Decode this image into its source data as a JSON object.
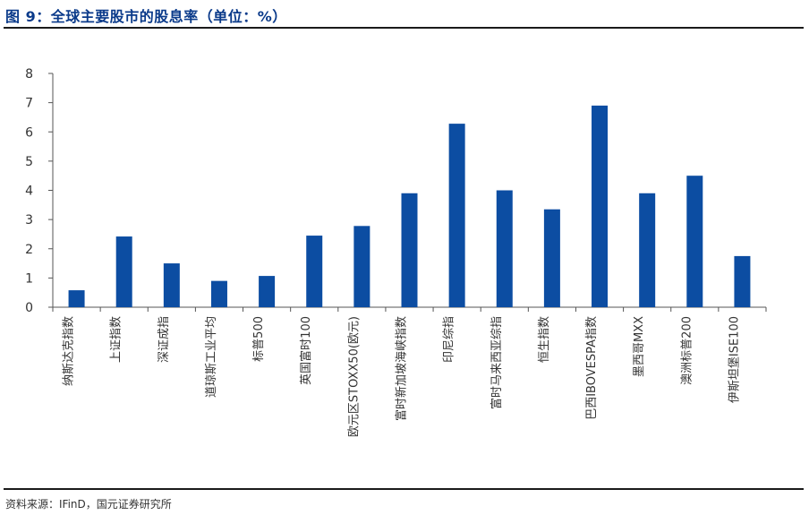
{
  "header": {
    "title": "图 9：全球主要股市的股息率（单位：%）"
  },
  "footer": {
    "source": "资料来源：IFinD，国元证券研究所"
  },
  "colors": {
    "bar": "#0c4da2",
    "axis": "#555555",
    "title": "#0a3a8a"
  },
  "chart_data": {
    "type": "bar",
    "title": "",
    "xlabel": "",
    "ylabel": "",
    "ylim": [
      0,
      8
    ],
    "yticks": [
      0,
      1,
      2,
      3,
      4,
      5,
      6,
      7,
      8
    ],
    "grid": false,
    "categories": [
      "纳斯达克指数",
      "上证指数",
      "深证成指",
      "道琼斯工业平均",
      "标普500",
      "英国富时100",
      "欧元区STOXX50(欧元)",
      "富时新加坡海峡指数",
      "印尼综指",
      "富时马来西亚综指",
      "恒生指数",
      "巴西IBOVESPA指数",
      "墨西哥MXX",
      "澳洲标普200",
      "伊斯坦堡ISE100"
    ],
    "values": [
      0.58,
      2.42,
      1.5,
      0.9,
      1.07,
      2.45,
      2.78,
      3.9,
      6.28,
      4.0,
      3.35,
      6.9,
      3.9,
      4.5,
      1.75
    ]
  }
}
